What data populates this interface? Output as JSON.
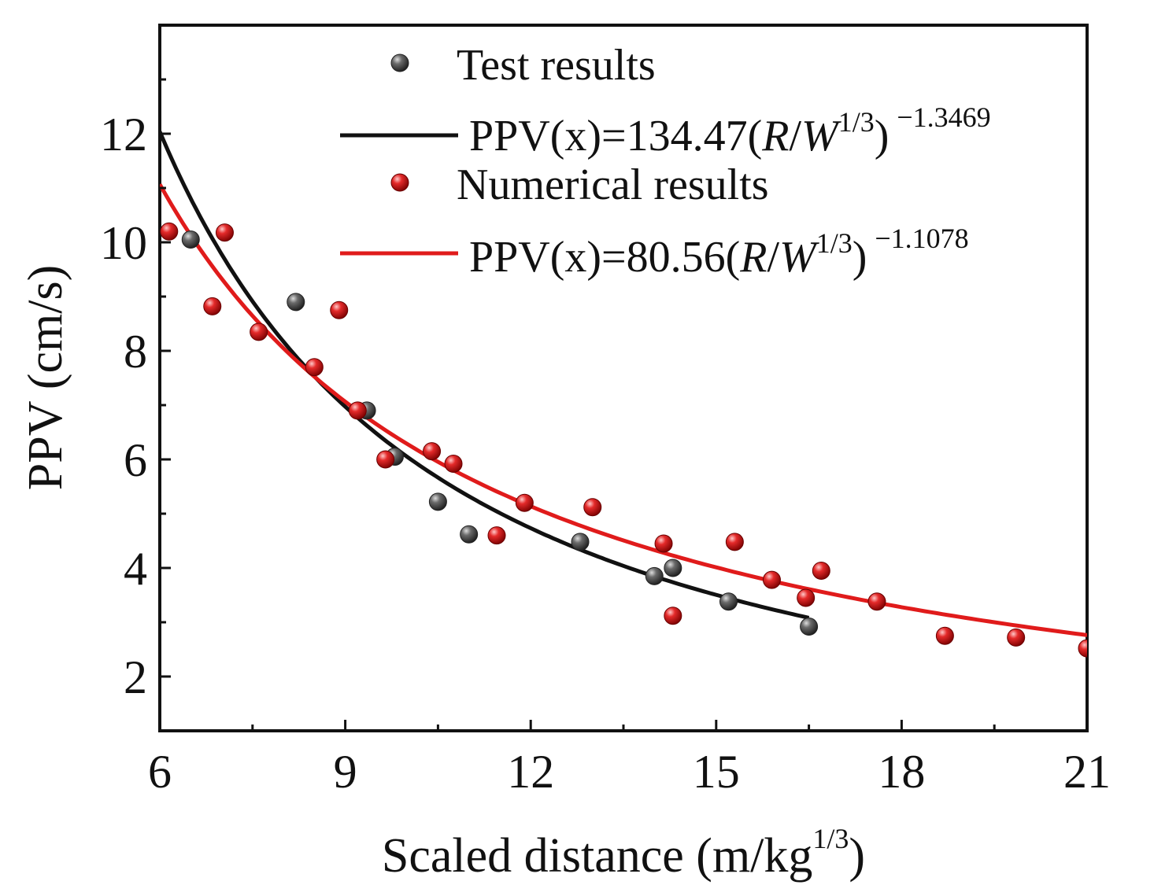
{
  "chart_data": {
    "type": "scatter",
    "xlabel": "Scaled distance (m/kg",
    "xlabel_sup": "1/3",
    "xlabel_close": ")",
    "ylabel": "PPV (cm/s)",
    "xlim": [
      6,
      21
    ],
    "ylim": [
      1,
      14
    ],
    "x_ticks": [
      6,
      9,
      12,
      15,
      18,
      21
    ],
    "y_ticks": [
      2,
      4,
      6,
      8,
      10,
      12
    ],
    "x_minor_ticks": [
      7.5,
      10.5,
      13.5,
      16.5,
      19.5
    ],
    "y_minor_ticks": [
      3,
      5,
      7,
      9,
      11,
      13
    ],
    "grid": false,
    "legend_position": "top-right",
    "series": [
      {
        "name": "Test results",
        "marker": "sphere",
        "color": "#3a3a3a",
        "points": [
          {
            "x": 6.5,
            "y": 10.05
          },
          {
            "x": 8.2,
            "y": 8.9
          },
          {
            "x": 9.35,
            "y": 6.9
          },
          {
            "x": 9.8,
            "y": 6.05
          },
          {
            "x": 10.5,
            "y": 5.22
          },
          {
            "x": 11.0,
            "y": 4.62
          },
          {
            "x": 12.8,
            "y": 4.48
          },
          {
            "x": 14.0,
            "y": 3.85
          },
          {
            "x": 14.3,
            "y": 4.0
          },
          {
            "x": 15.2,
            "y": 3.38
          },
          {
            "x": 16.5,
            "y": 2.92
          }
        ]
      },
      {
        "name": "Numerical results",
        "marker": "sphere",
        "color": "#d91c1c",
        "points": [
          {
            "x": 6.15,
            "y": 10.2
          },
          {
            "x": 6.85,
            "y": 8.82
          },
          {
            "x": 7.05,
            "y": 10.18
          },
          {
            "x": 7.6,
            "y": 8.35
          },
          {
            "x": 8.5,
            "y": 7.7
          },
          {
            "x": 8.9,
            "y": 8.75
          },
          {
            "x": 9.2,
            "y": 6.9
          },
          {
            "x": 9.65,
            "y": 6.0
          },
          {
            "x": 10.4,
            "y": 6.15
          },
          {
            "x": 10.75,
            "y": 5.92
          },
          {
            "x": 11.45,
            "y": 4.6
          },
          {
            "x": 11.9,
            "y": 5.2
          },
          {
            "x": 13.0,
            "y": 5.12
          },
          {
            "x": 14.15,
            "y": 4.45
          },
          {
            "x": 14.3,
            "y": 3.12
          },
          {
            "x": 15.3,
            "y": 4.48
          },
          {
            "x": 15.9,
            "y": 3.78
          },
          {
            "x": 16.45,
            "y": 3.45
          },
          {
            "x": 16.7,
            "y": 3.95
          },
          {
            "x": 17.6,
            "y": 3.38
          },
          {
            "x": 18.7,
            "y": 2.75
          },
          {
            "x": 19.85,
            "y": 2.72
          },
          {
            "x": 21.0,
            "y": 2.52
          }
        ]
      }
    ],
    "fits": [
      {
        "name": "PPV(x)=134.47(R/W^(1/3))^-1.3469",
        "label_main": "PPV(x)=134.47(",
        "label_var1": "R",
        "label_slash": "/",
        "label_var2": "W",
        "label_sup1": "1/3",
        "label_close": ")",
        "label_exp": "−1.3469",
        "color": "#111111",
        "a": 134.47,
        "b": -1.3469,
        "x_range": [
          6,
          16.5
        ]
      },
      {
        "name": "PPV(x)=80.56(R/W^(1/3))^-1.1078",
        "label_main": "PPV(x)=80.56(",
        "label_var1": "R",
        "label_slash": "/",
        "label_var2": "W",
        "label_sup1": "1/3",
        "label_close": ")",
        "label_exp": "−1.1078",
        "color": "#e01b1b",
        "a": 80.56,
        "b": -1.1078,
        "x_range": [
          6,
          21
        ]
      }
    ]
  }
}
